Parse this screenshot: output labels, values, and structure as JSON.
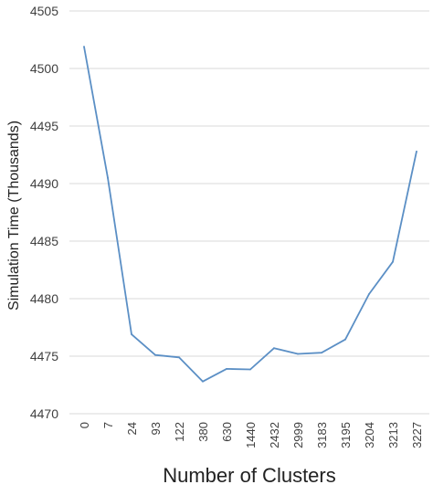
{
  "chart_data": {
    "type": "line",
    "title": "",
    "xlabel": "Number of Clusters",
    "ylabel": "Simulation Time (Thousands)",
    "categories": [
      "0",
      "7",
      "24",
      "93",
      "122",
      "380",
      "630",
      "1440",
      "2432",
      "2999",
      "3183",
      "3195",
      "3204",
      "3213",
      "3227"
    ],
    "series": [
      {
        "values": [
          4501.9,
          4490.5,
          4476.9,
          4475.1,
          4474.9,
          4472.8,
          4473.9,
          4473.85,
          4475.7,
          4475.2,
          4475.3,
          4476.45,
          4480.4,
          4483.2,
          4492.8
        ]
      }
    ],
    "ylim": [
      4470,
      4505
    ],
    "yticks": [
      "4470",
      "4475",
      "4480",
      "4485",
      "4490",
      "4495",
      "4500",
      "4505"
    ],
    "grid": true,
    "line_color": "#5b8fc5"
  }
}
